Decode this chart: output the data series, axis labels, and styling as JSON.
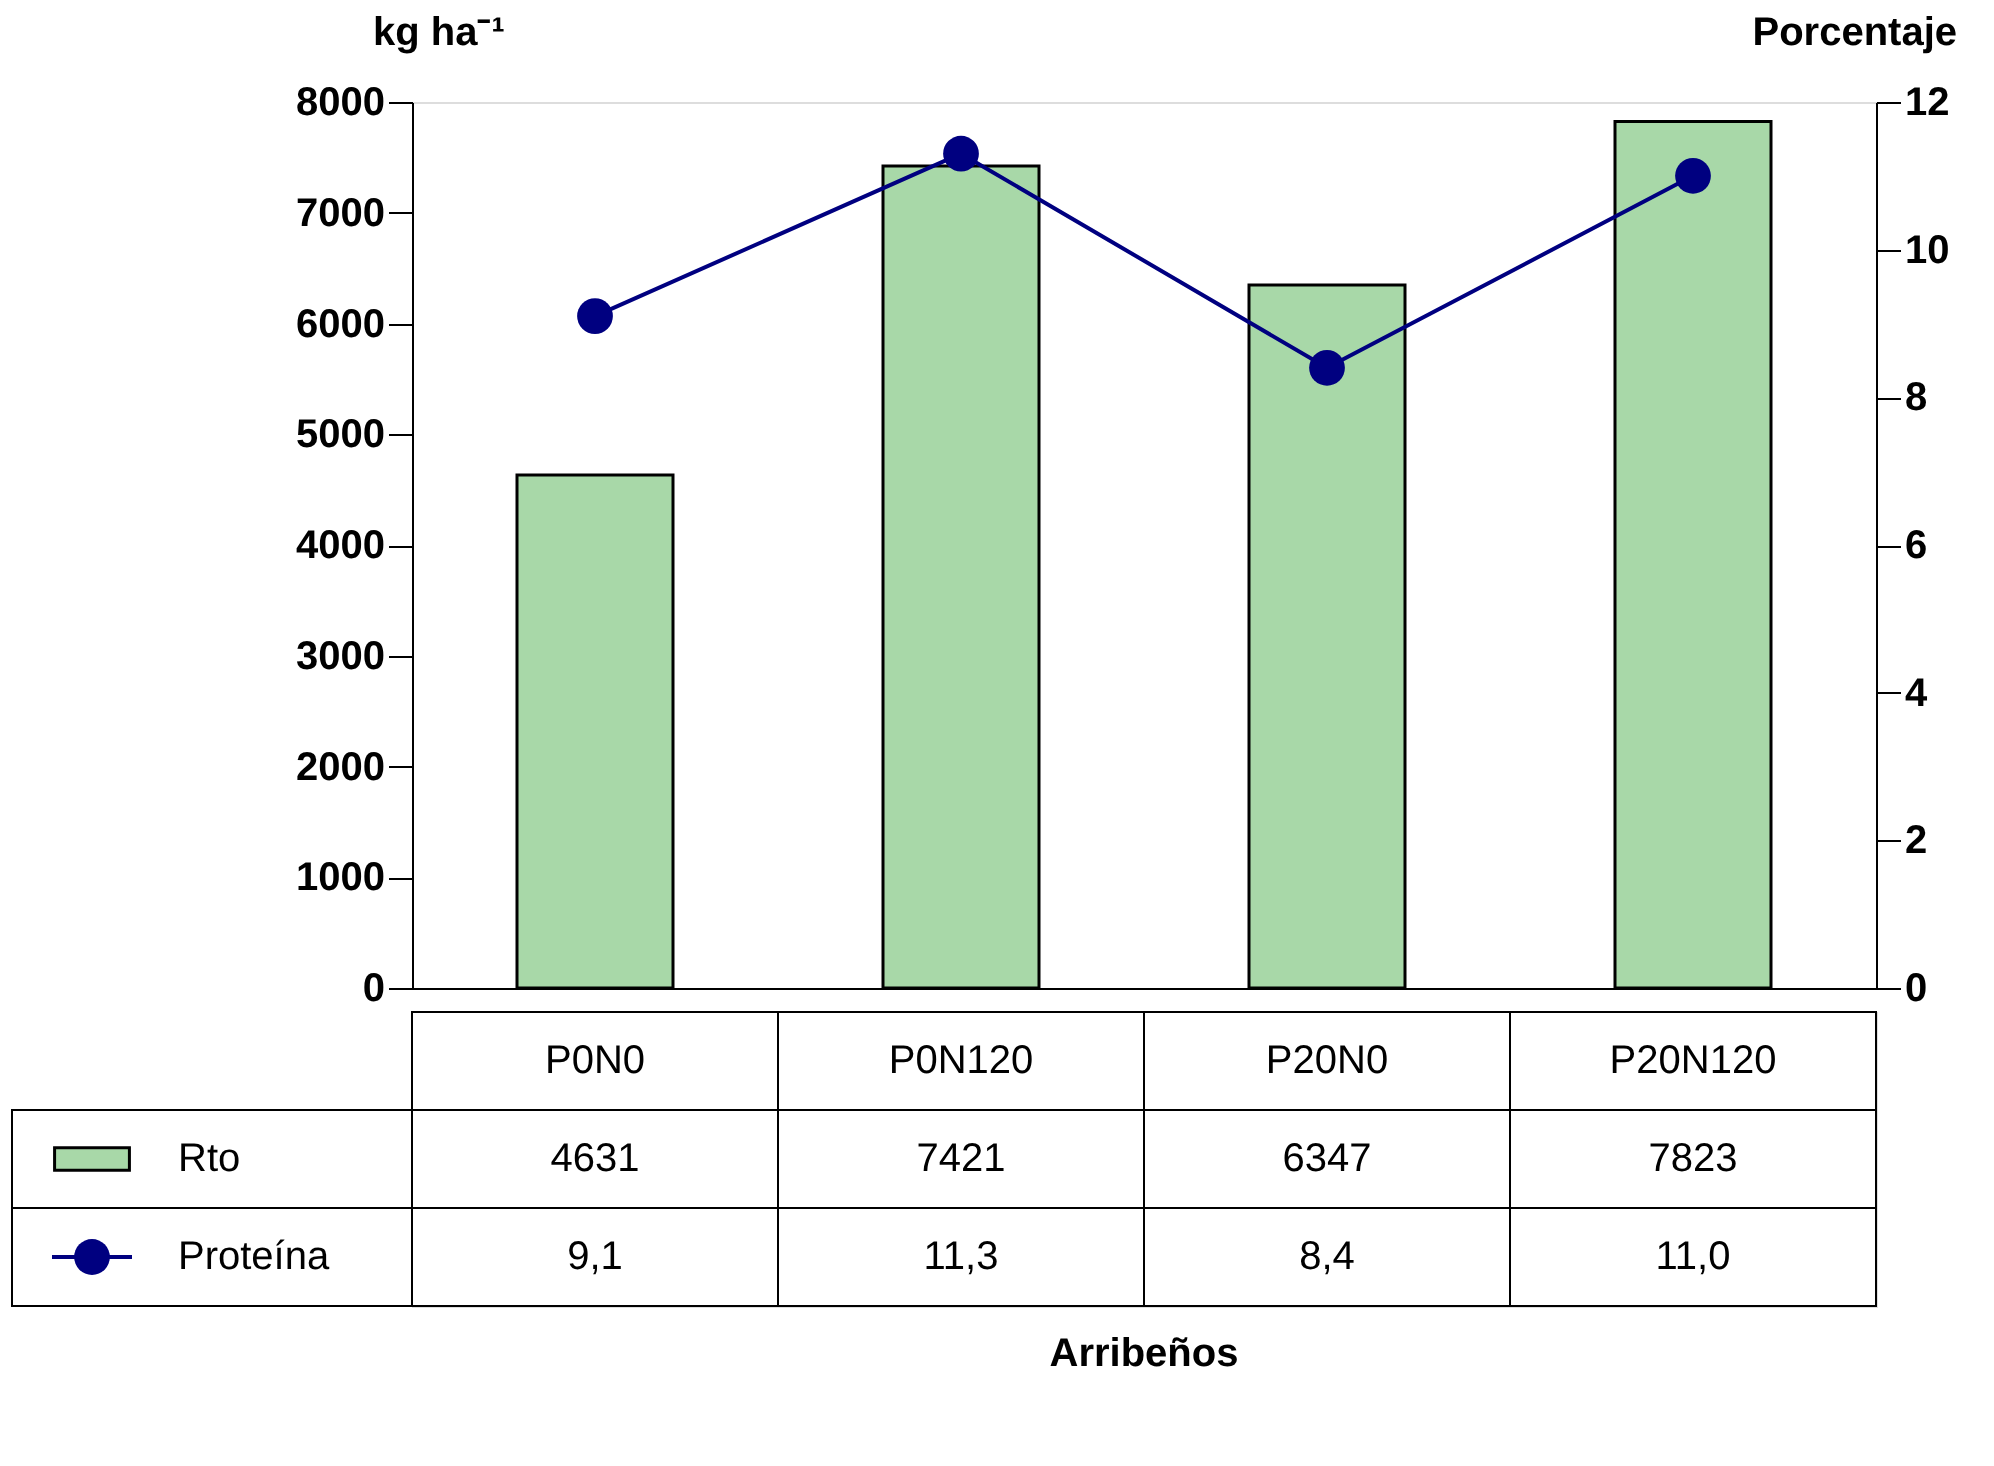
{
  "chart_data": {
    "type": "bar",
    "annotations": [
      "Arribeños"
    ],
    "ylabel": "kg ha⁻¹",
    "y2label": "Porcentaje",
    "categories": [
      "P0N0",
      "P0N120",
      "P20N0",
      "P20N120"
    ],
    "series": [
      {
        "name": "Rto",
        "color": "#a8d8a8",
        "values": [
          4631,
          7421,
          6347,
          7823
        ],
        "value_labels": [
          "4631",
          "7421",
          "6347",
          "7823"
        ]
      },
      {
        "name": "Proteína",
        "type": "line",
        "axis": "y2",
        "color": "#000080",
        "marker": "circle",
        "line_style": "solid",
        "values": [
          9.1,
          11.3,
          8.4,
          11.0
        ],
        "value_labels": [
          "9,1",
          "11,3",
          "8,4",
          "11,0"
        ]
      }
    ],
    "ylim": [
      0,
      8000
    ],
    "yticks": [
      0,
      1000,
      2000,
      3000,
      4000,
      5000,
      6000,
      7000,
      8000
    ],
    "y2lim": [
      0,
      12
    ],
    "y2ticks": [
      0,
      2,
      4,
      6,
      8,
      10,
      12
    ],
    "grid": false,
    "legend": "bottom"
  }
}
